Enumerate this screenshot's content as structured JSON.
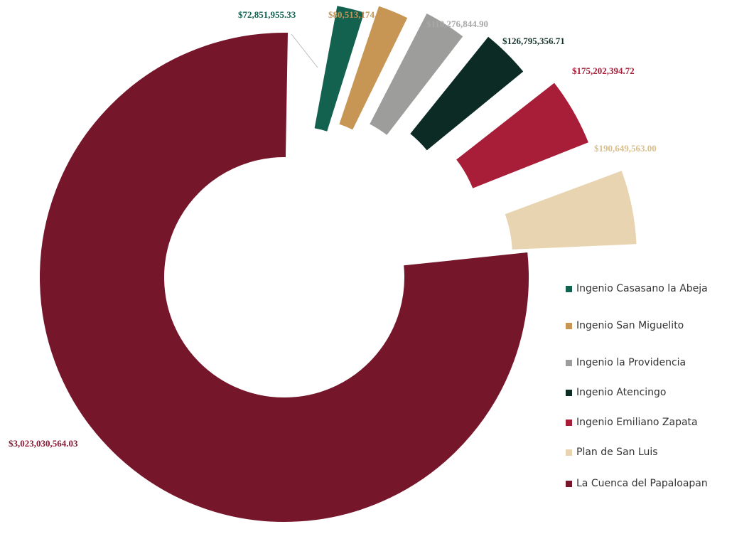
{
  "chart_data": {
    "type": "pie",
    "donut": true,
    "slices": [
      {
        "label": "La Cuenca del Papaloapan",
        "value": 3023030564.03,
        "value_label": "$3,023,030,564.03",
        "color": "#76162b"
      },
      {
        "label": "Ingenio Casasano la Abeja",
        "value": 72851955.33,
        "value_label": "$72,851,955.33",
        "color": "#13614f"
      },
      {
        "label": "Ingenio San Miguelito",
        "value": 80513174.99,
        "value_label": "$80,513,174.99",
        "color": "#c79554"
      },
      {
        "label": "Ingenio la Providencia",
        "value": 110276844.9,
        "value_label": "$110,276,844.90",
        "color": "#9d9d9c"
      },
      {
        "label": "Ingenio Atencingo",
        "value": 126795356.71,
        "value_label": "$126,795,356.71",
        "color": "#0b2b24"
      },
      {
        "label": "Ingenio Emiliano Zapata",
        "value": 175202394.72,
        "value_label": "$175,202,394.72",
        "color": "#a81d37"
      },
      {
        "label": "Plan de San Luis",
        "value": 190649563.0,
        "value_label": "$190,649,563.00",
        "color": "#e8d4b0"
      }
    ],
    "legend_position": "right",
    "legend": [
      {
        "label": "Ingenio Casasano la Abeja",
        "color": "#13614f"
      },
      {
        "label": "Ingenio San Miguelito",
        "color": "#c79554"
      },
      {
        "label": "Ingenio la Providencia",
        "color": "#9d9d9c"
      },
      {
        "label": "Ingenio Atencingo",
        "color": "#0b2b24"
      },
      {
        "label": "Ingenio Emiliano Zapata",
        "color": "#a81d37"
      },
      {
        "label": "Plan de San Luis",
        "color": "#e8d4b0"
      },
      {
        "label": "La Cuenca del Papaloapan",
        "color": "#76162b"
      }
    ]
  }
}
